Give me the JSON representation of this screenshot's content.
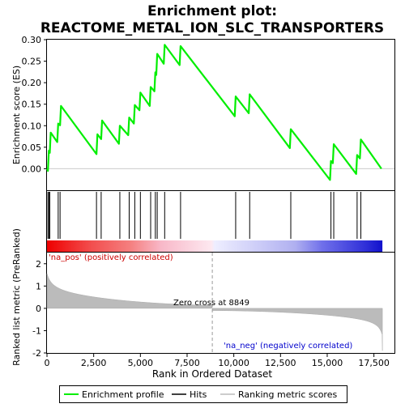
{
  "chart_data": {
    "type": "line",
    "title_line1": "Enrichment plot:",
    "title_line2": "REACTOME_METAL_ION_SLC_TRANSPORTERS",
    "top_panel": {
      "ylabel": "Enrichment score (ES)",
      "ylim": [
        -0.05,
        0.3
      ],
      "yticks": [
        "0.00",
        "0.05",
        "0.10",
        "0.15",
        "0.20",
        "0.25",
        "0.30"
      ],
      "ytick_values": [
        0.0,
        0.05,
        0.1,
        0.15,
        0.2,
        0.25,
        0.3
      ],
      "series_name": "Enrichment profile",
      "color": "#00ee00",
      "points": [
        [
          0,
          0.0
        ],
        [
          50,
          -0.005
        ],
        [
          100,
          0.042
        ],
        [
          150,
          0.037
        ],
        [
          200,
          0.084
        ],
        [
          550,
          0.062
        ],
        [
          600,
          0.105
        ],
        [
          700,
          0.101
        ],
        [
          750,
          0.146
        ],
        [
          2650,
          0.034
        ],
        [
          2700,
          0.08
        ],
        [
          2900,
          0.069
        ],
        [
          2950,
          0.112
        ],
        [
          3850,
          0.058
        ],
        [
          3900,
          0.1
        ],
        [
          4350,
          0.078
        ],
        [
          4400,
          0.119
        ],
        [
          4650,
          0.105
        ],
        [
          4700,
          0.148
        ],
        [
          4950,
          0.136
        ],
        [
          5000,
          0.177
        ],
        [
          5500,
          0.146
        ],
        [
          5550,
          0.19
        ],
        [
          5750,
          0.18
        ],
        [
          5800,
          0.224
        ],
        [
          5850,
          0.218
        ],
        [
          5900,
          0.267
        ],
        [
          6250,
          0.244
        ],
        [
          6300,
          0.288
        ],
        [
          7100,
          0.241
        ],
        [
          7150,
          0.285
        ],
        [
          10050,
          0.122
        ],
        [
          10100,
          0.168
        ],
        [
          10800,
          0.129
        ],
        [
          10850,
          0.173
        ],
        [
          13000,
          0.048
        ],
        [
          13050,
          0.092
        ],
        [
          15150,
          -0.026
        ],
        [
          15200,
          0.018
        ],
        [
          15300,
          0.013
        ],
        [
          15350,
          0.057
        ],
        [
          16550,
          -0.012
        ],
        [
          16600,
          0.032
        ],
        [
          16750,
          0.024
        ],
        [
          16800,
          0.068
        ],
        [
          17900,
          0.0
        ]
      ]
    },
    "hits": [
      50,
      100,
      150,
      600,
      700,
      2650,
      2900,
      3900,
      4400,
      4700,
      5000,
      5550,
      5800,
      5900,
      6300,
      7150,
      10100,
      10850,
      13050,
      15200,
      15350,
      16600,
      16800
    ],
    "hits_label": "Hits",
    "bottom_panel": {
      "ylabel": "Ranked list metric (PreRanked)",
      "ylim": [
        -2,
        2.5
      ],
      "yticks": [
        "-2",
        "-1",
        "0",
        "1",
        "2"
      ],
      "ytick_values": [
        -2,
        -1,
        0,
        1,
        2
      ],
      "series_name": "Ranking metric scores",
      "zero_cross_label": "Zero cross at 8849",
      "zero_cross": 8849,
      "pos_label": "'na_pos' (positively correlated)",
      "neg_label": "'na_neg' (negatively correlated)"
    },
    "x_axis": {
      "xlabel": "Rank in Ordered Dataset",
      "xlim": [
        0,
        18600
      ],
      "xticks": [
        "0",
        "2,500",
        "5,000",
        "7,500",
        "10,000",
        "12,500",
        "15,000",
        "17,500"
      ],
      "xtick_values": [
        0,
        2500,
        5000,
        7500,
        10000,
        12500,
        15000,
        17500
      ],
      "n_genes": 17954
    },
    "legend": {
      "placement": "bottom",
      "items": [
        "Enrichment profile",
        "Hits",
        "Ranking metric scores"
      ]
    }
  }
}
